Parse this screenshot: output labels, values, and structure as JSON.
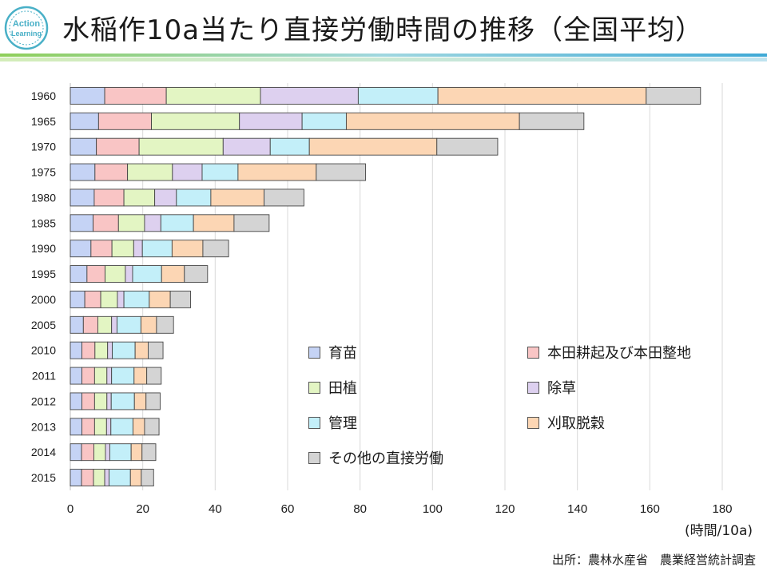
{
  "header": {
    "logo_line1": "Action",
    "logo_line2": "Learning",
    "title": "水稲作10a当たり直接労働時間の推移（全国平均）"
  },
  "chart_data": {
    "type": "bar",
    "orientation": "horizontal",
    "stacked": true,
    "title": "水稲作10a当たり直接労働時間の推移（全国平均）",
    "xlabel": "(時間/10a)",
    "ylabel": "",
    "xlim": [
      0,
      180
    ],
    "xticks": [
      0,
      20,
      40,
      60,
      80,
      100,
      120,
      140,
      160,
      180
    ],
    "grid": true,
    "legend_position": "center-right",
    "categories": [
      "1960",
      "1965",
      "1970",
      "1975",
      "1980",
      "1985",
      "1990",
      "1995",
      "2000",
      "2005",
      "2010",
      "2011",
      "2012",
      "2013",
      "2014",
      "2015"
    ],
    "series": [
      {
        "name": "育苗",
        "color": "#c5d3f5",
        "values": [
          9.5,
          7.8,
          7.2,
          6.8,
          6.6,
          6.3,
          5.7,
          4.6,
          4.0,
          3.6,
          3.2,
          3.2,
          3.2,
          3.2,
          3.1,
          3.1
        ]
      },
      {
        "name": "本田耕起及び本田整地",
        "color": "#f9c5c5",
        "values": [
          17.0,
          14.6,
          11.8,
          9.0,
          8.2,
          7.0,
          5.8,
          5.0,
          4.4,
          4.0,
          3.6,
          3.5,
          3.5,
          3.5,
          3.4,
          3.3
        ]
      },
      {
        "name": "田植",
        "color": "#e3f5c3",
        "values": [
          26.0,
          24.3,
          23.2,
          12.4,
          8.5,
          7.2,
          6.0,
          5.6,
          4.6,
          3.8,
          3.5,
          3.4,
          3.4,
          3.3,
          3.2,
          3.1
        ]
      },
      {
        "name": "除草",
        "color": "#ddd0ef",
        "values": [
          27.0,
          17.3,
          13.0,
          8.2,
          6.0,
          4.5,
          2.4,
          2.0,
          1.8,
          1.5,
          1.3,
          1.3,
          1.2,
          1.2,
          1.2,
          1.2
        ]
      },
      {
        "name": "管理",
        "color": "#c3eff9",
        "values": [
          22.0,
          12.2,
          10.8,
          9.9,
          9.5,
          9.0,
          8.2,
          8.0,
          7.0,
          6.6,
          6.3,
          6.2,
          6.4,
          6.1,
          5.9,
          5.9
        ]
      },
      {
        "name": "刈取脱穀",
        "color": "#fcd6b4",
        "values": [
          57.5,
          47.8,
          35.2,
          21.6,
          14.7,
          11.2,
          8.5,
          6.3,
          5.8,
          4.3,
          3.6,
          3.5,
          3.2,
          3.2,
          3.0,
          3.0
        ]
      },
      {
        "name": "その他の直接労働",
        "color": "#d4d4d4",
        "values": [
          15.0,
          17.8,
          16.8,
          13.6,
          11.0,
          9.7,
          7.1,
          6.4,
          5.6,
          4.7,
          4.1,
          4.0,
          3.9,
          4.0,
          3.8,
          3.4
        ]
      }
    ]
  },
  "source": "出所：農林水産省　農業経営統計調査"
}
